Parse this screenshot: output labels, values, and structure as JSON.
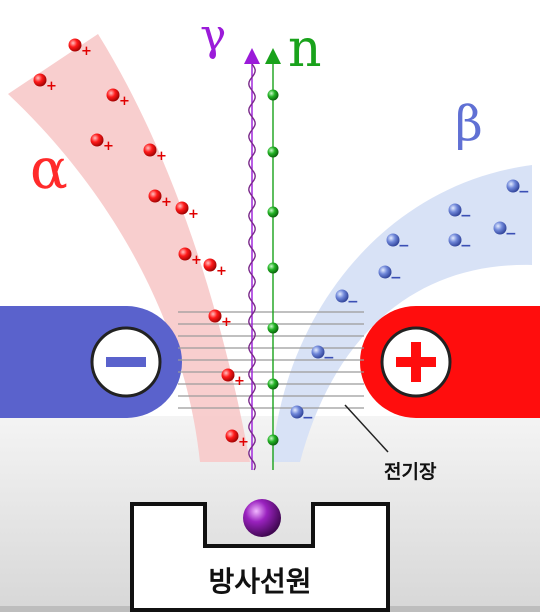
{
  "labels": {
    "alpha": "α",
    "gamma": "γ",
    "neutron": "n",
    "beta": "β",
    "field": "전기장",
    "source": "방사선원",
    "minus_sign": "−",
    "plus_sign": "+"
  },
  "particle_charges": {
    "alpha": "+",
    "beta": "−"
  },
  "colors": {
    "alpha": "#ff2a2a",
    "alpha_beam": "#f7c9c9",
    "beta": "#5b6fcf",
    "beta_beam": "#d6e0f6",
    "gamma": "#9b1bd9",
    "neutron": "#19a21b",
    "negative_plate": "#5a62cc",
    "positive_plate": "#ff0d0d",
    "field_lines": "#9a9a9a",
    "source_ball": "#8a1aa8"
  },
  "icons": {
    "negative_plate": "minus-icon",
    "positive_plate": "plus-icon",
    "source": "radioactive-sample-icon"
  }
}
